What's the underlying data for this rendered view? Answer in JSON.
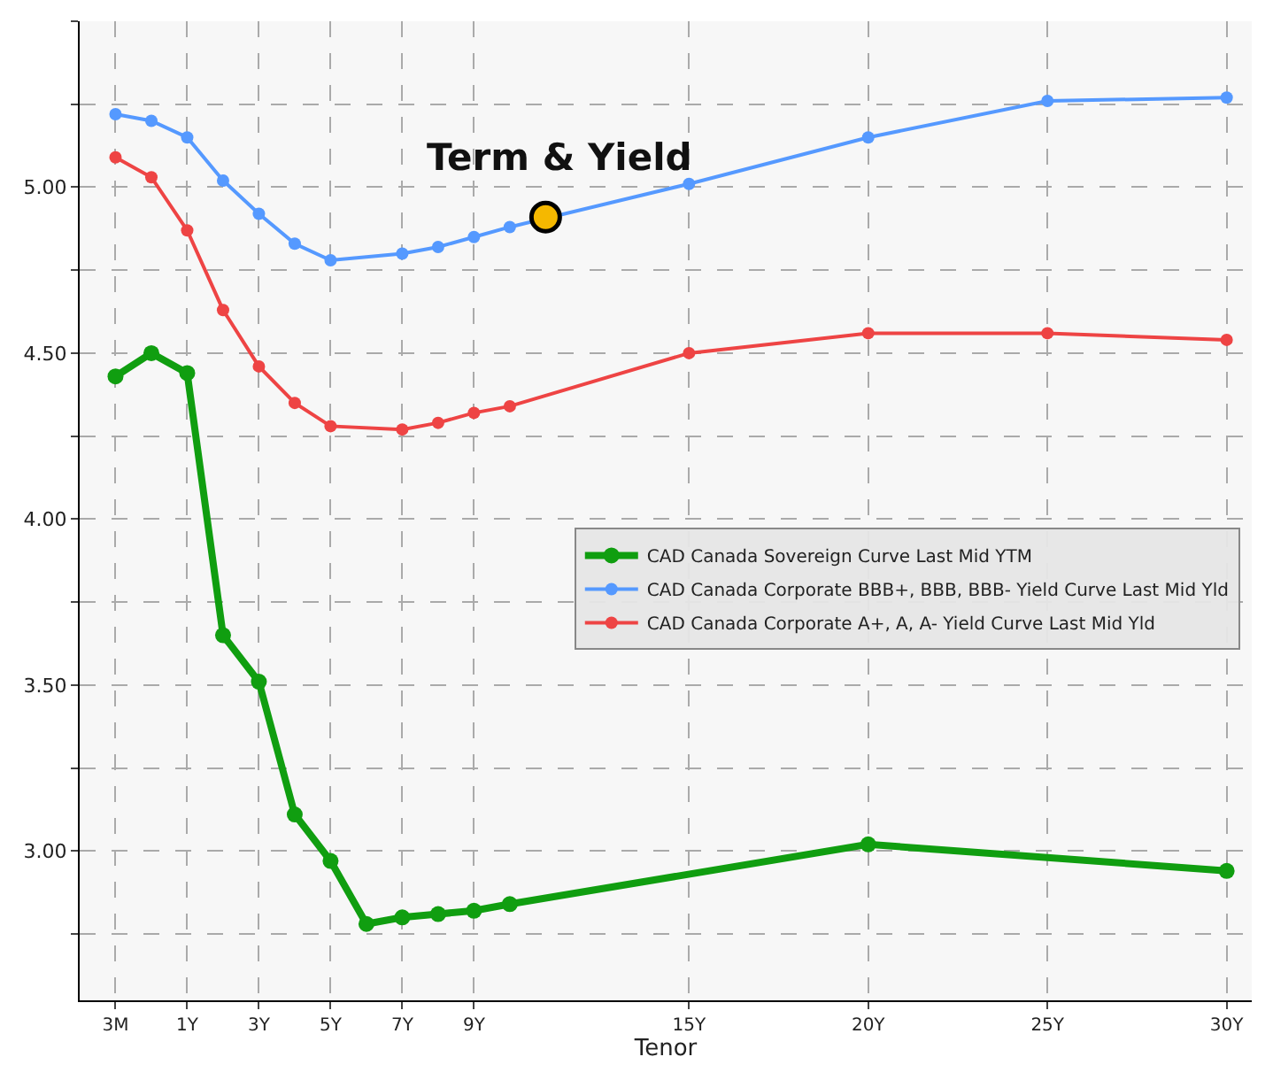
{
  "chart_data": {
    "type": "line",
    "xlabel": "Tenor",
    "grid": true,
    "legend": "right",
    "marker": "circle",
    "line_style": "solid",
    "categories": [
      "3M",
      null,
      "1Y",
      null,
      "3Y",
      null,
      "5Y",
      null,
      "7Y",
      null,
      "9Y",
      null,
      null,
      null,
      null,
      null,
      "15Y",
      null,
      null,
      null,
      null,
      "20Y",
      null,
      null,
      null,
      null,
      "25Y",
      null,
      null,
      null,
      null,
      "30Y"
    ],
    "ylim": [
      2.55,
      5.5
    ],
    "yticks": [
      {
        "value": 2.75,
        "label": null
      },
      {
        "value": 3,
        "label": "3.00"
      },
      {
        "value": 3.25,
        "label": null
      },
      {
        "value": 3.5,
        "label": "3.50"
      },
      {
        "value": 3.75,
        "label": null
      },
      {
        "value": 4,
        "label": "4.00"
      },
      {
        "value": 4.25,
        "label": null
      },
      {
        "value": 4.5,
        "label": "4.50"
      },
      {
        "value": 4.75,
        "label": null
      },
      {
        "value": 5,
        "label": "5.00"
      },
      {
        "value": 5.25,
        "label": null
      },
      {
        "value": 5.5,
        "label": null
      }
    ],
    "annotations": [
      "Term & Yield"
    ],
    "series": [
      {
        "name": "CAD Canada Sovereign Curve Last Mid YTM",
        "color": "#109e10",
        "values": [
          4.43,
          4.5,
          4.44,
          3.65,
          3.51,
          3.11,
          2.97,
          2.78,
          2.8,
          2.81,
          2.82,
          2.84,
          null,
          null,
          null,
          null,
          null,
          null,
          null,
          null,
          null,
          3.02,
          null,
          null,
          null,
          null,
          null,
          null,
          null,
          null,
          null,
          2.94
        ]
      },
      {
        "name": "CAD Canada Corporate BBB+, BBB, BBB- Yield Curve Last Mid Yld",
        "color": "#5599ff",
        "values": [
          5.22,
          5.2,
          5.15,
          5.02,
          4.92,
          4.83,
          4.78,
          null,
          4.8,
          4.82,
          4.85,
          4.88,
          null,
          null,
          null,
          null,
          5.01,
          null,
          null,
          null,
          null,
          5.15,
          null,
          null,
          null,
          null,
          5.26,
          null,
          null,
          null,
          null,
          5.27
        ]
      },
      {
        "name": "CAD Canada Corporate A+, A, A- Yield Curve Last Mid Yld",
        "color": "#ee4444",
        "values": [
          5.09,
          5.03,
          4.87,
          4.63,
          4.46,
          4.35,
          4.28,
          null,
          4.27,
          4.29,
          4.32,
          4.34,
          null,
          null,
          null,
          null,
          4.5,
          null,
          null,
          null,
          null,
          4.56,
          null,
          null,
          null,
          null,
          4.56,
          null,
          null,
          null,
          null,
          4.54
        ]
      },
      {
        "type": "scatter",
        "color": "#f5b800",
        "values": [
          null,
          null,
          null,
          null,
          null,
          null,
          null,
          null,
          null,
          null,
          null,
          null,
          4.91,
          null,
          null,
          null,
          null,
          null,
          null,
          null,
          null,
          null,
          null,
          null,
          null,
          null,
          null,
          null,
          null,
          null,
          null,
          null
        ]
      }
    ]
  }
}
